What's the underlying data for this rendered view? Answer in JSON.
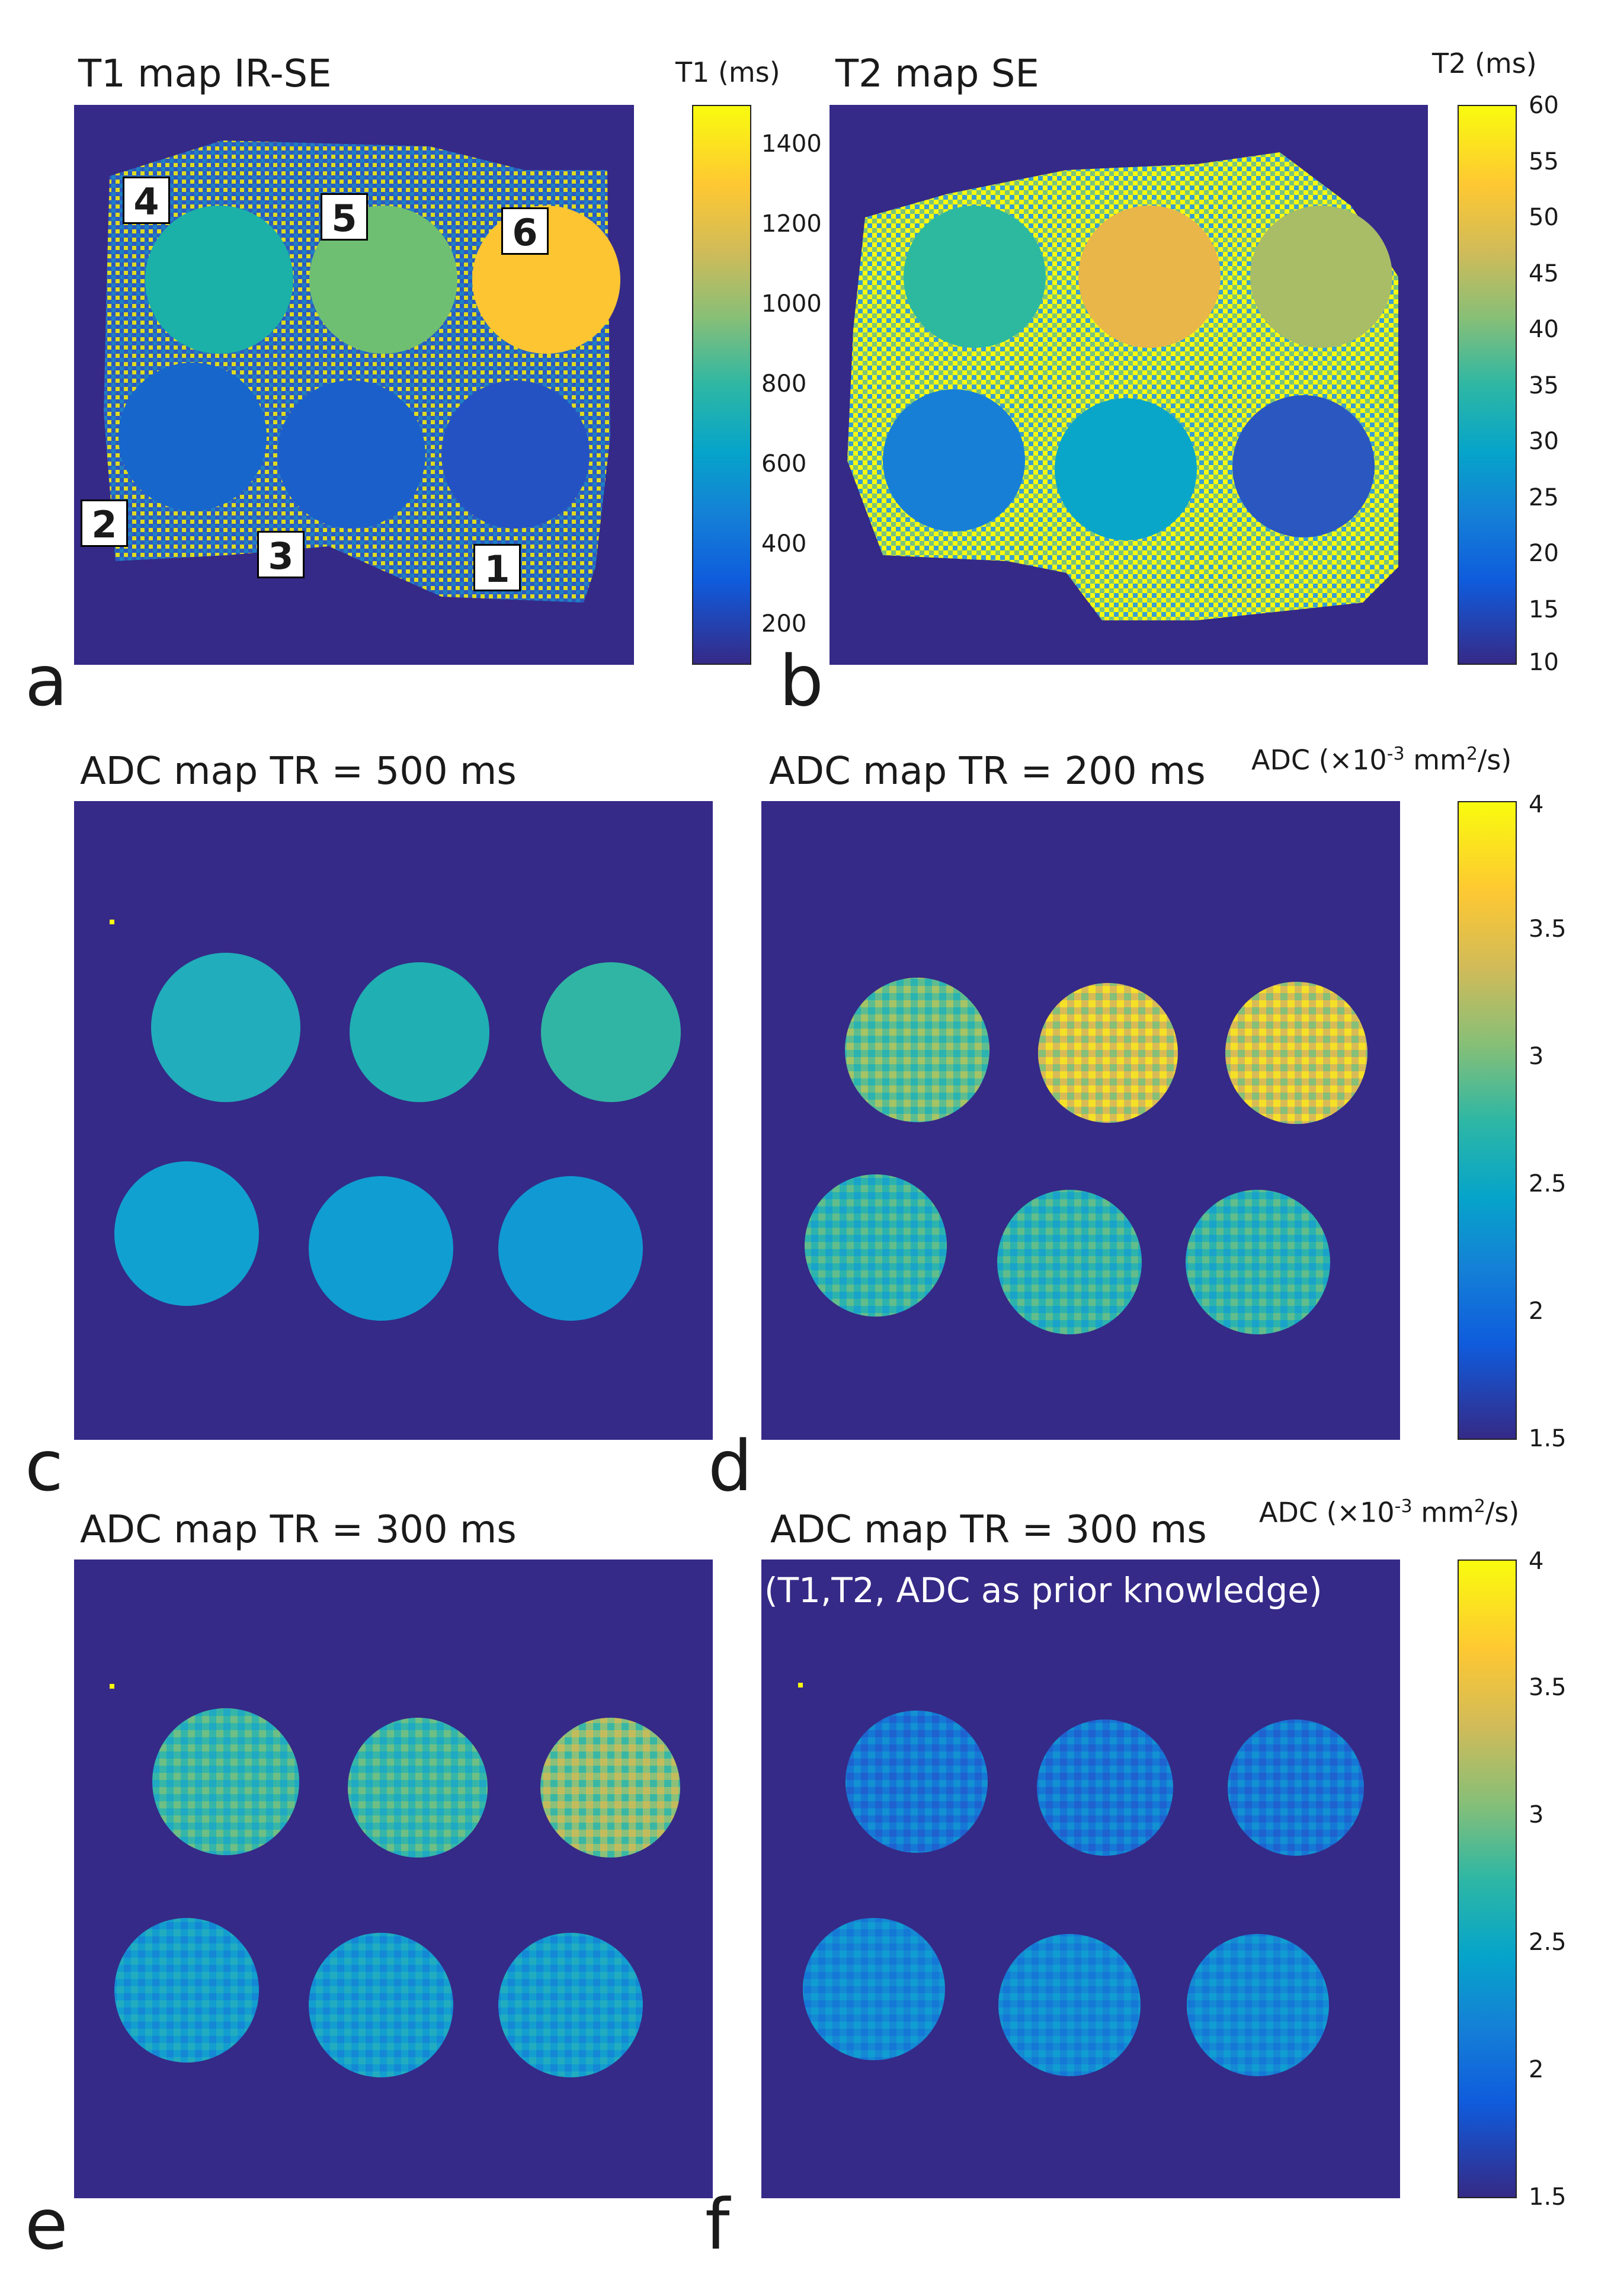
{
  "panels": {
    "a": {
      "letter": "a",
      "title": "T1 map IR-SE",
      "vial_labels": [
        "4",
        "5",
        "6",
        "2",
        "3",
        "1"
      ]
    },
    "b": {
      "letter": "b",
      "title": "T2 map SE"
    },
    "c": {
      "letter": "c",
      "title": "ADC map  TR = 500 ms"
    },
    "d": {
      "letter": "d",
      "title": "ADC map   TR = 200 ms"
    },
    "e": {
      "letter": "e",
      "title": "ADC map  TR = 300 ms"
    },
    "f": {
      "letter": "f",
      "title": "ADC map TR = 300 ms",
      "note": "(T1,T2, ADC as prior knowledge)"
    }
  },
  "colorbars": {
    "t1": {
      "label": "T1 (ms)",
      "ticks": [
        "1400",
        "1200",
        "1000",
        "800",
        "600",
        "400",
        "200"
      ],
      "range": [
        100,
        1500
      ]
    },
    "t2": {
      "label": "T2 (ms)",
      "ticks": [
        "60",
        "55",
        "50",
        "45",
        "40",
        "35",
        "30",
        "25",
        "20",
        "15",
        "10"
      ],
      "range": [
        10,
        60
      ]
    },
    "adc_top": {
      "label_prefix": "ADC   (×10",
      "label_exp": "-3",
      "label_mid": " mm",
      "label_exp2": "2",
      "label_suffix": "/s)",
      "ticks": [
        "4",
        "3.5",
        "3",
        "2.5",
        "2",
        "1.5"
      ],
      "range": [
        1.5,
        4
      ]
    },
    "adc_bottom": {
      "label_prefix": "ADC   (×10",
      "label_exp": "-3",
      "label_mid": " mm",
      "label_exp2": "2",
      "label_suffix": "/s)",
      "ticks": [
        "4",
        "3.5",
        "3",
        "2.5",
        "2",
        "1.5"
      ],
      "range": [
        1.5,
        4
      ]
    }
  },
  "colors": {
    "background": "#352a87",
    "noise_yellow": "#f9fb0e"
  }
}
